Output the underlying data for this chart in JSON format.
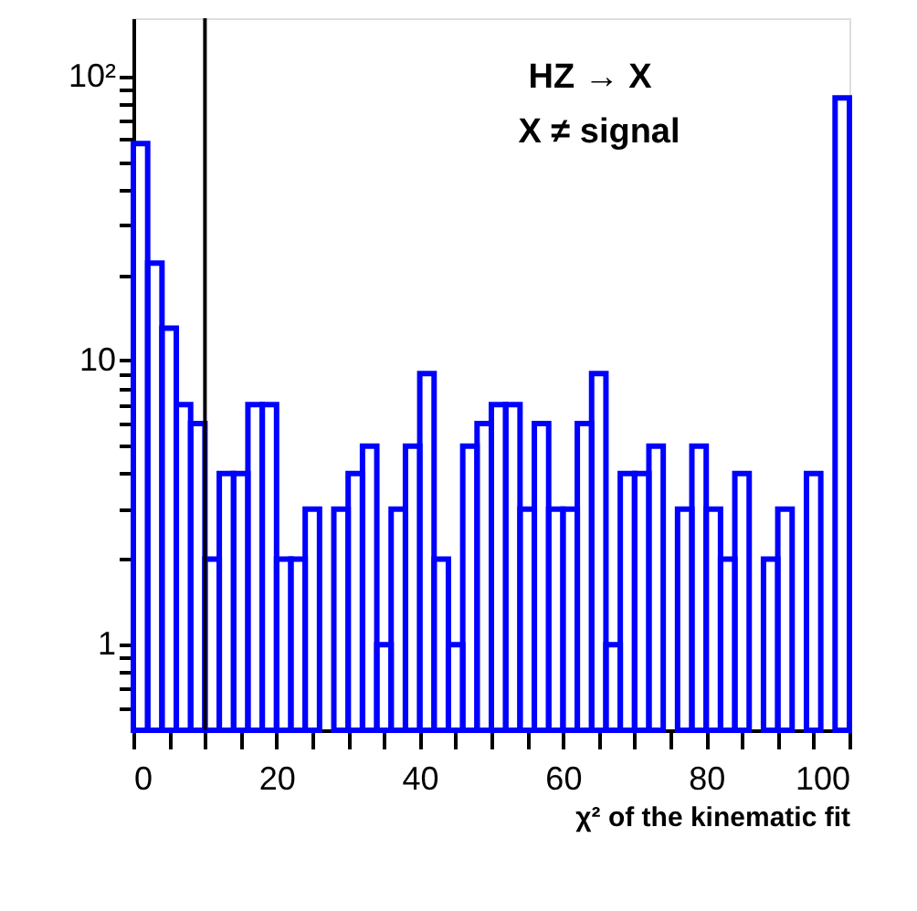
{
  "chart_data": {
    "type": "histogram",
    "xlabel": "χ² of the kinematic fit",
    "annotations": [
      "HZ → X",
      "X ≠ signal"
    ],
    "bins": [
      0,
      2,
      4,
      6,
      8,
      10,
      12,
      14,
      16,
      18,
      20,
      22,
      24,
      26,
      28,
      30,
      32,
      34,
      36,
      38,
      40,
      42,
      44,
      46,
      48,
      50,
      52,
      54,
      56,
      58,
      60,
      62,
      64,
      66,
      68,
      70,
      72,
      74,
      76,
      78,
      80,
      82,
      84,
      86,
      88,
      90,
      92,
      94,
      96,
      98,
      100
    ],
    "values": [
      58,
      22,
      13,
      7,
      6,
      2,
      4,
      4,
      7,
      7,
      2,
      2,
      3,
      null,
      3,
      4,
      5,
      1,
      3,
      5,
      9,
      2,
      1,
      5,
      6,
      7,
      7,
      3,
      6,
      3,
      3,
      6,
      9,
      1,
      4,
      4,
      5,
      null,
      3,
      5,
      3,
      2,
      4,
      null,
      2,
      3,
      null,
      4,
      null,
      84
    ],
    "color": "#0000ff",
    "xlim": [
      0,
      100
    ],
    "xticks": [
      0,
      {
        "value": 5,
        "label": null
      },
      {
        "value": 10,
        "label": null
      },
      {
        "value": 15,
        "label": null
      },
      20,
      {
        "value": 25,
        "label": null
      },
      {
        "value": 30,
        "label": null
      },
      {
        "value": 35,
        "label": null
      },
      40,
      {
        "value": 45,
        "label": null
      },
      {
        "value": 50,
        "label": null
      },
      {
        "value": 55,
        "label": null
      },
      60,
      {
        "value": 65,
        "label": null
      },
      {
        "value": 70,
        "label": null
      },
      {
        "value": 75,
        "label": null
      },
      80,
      {
        "value": 85,
        "label": null
      },
      {
        "value": 90,
        "label": null
      },
      {
        "value": 95,
        "label": null
      },
      100
    ],
    "ylim": [
      0.5,
      160
    ],
    "yticks": [
      {
        "value": 0.6,
        "label": null
      },
      {
        "value": 0.7,
        "label": null
      },
      {
        "value": 0.8,
        "label": null
      },
      {
        "value": 0.9,
        "label": null
      },
      1,
      {
        "value": 2,
        "label": null
      },
      {
        "value": 3,
        "label": null
      },
      {
        "value": 4,
        "label": null
      },
      {
        "value": 5,
        "label": null
      },
      {
        "value": 6,
        "label": null
      },
      {
        "value": 7,
        "label": null
      },
      {
        "value": 8,
        "label": null
      },
      {
        "value": 9,
        "label": null
      },
      10,
      {
        "value": 20,
        "label": null
      },
      {
        "value": 30,
        "label": null
      },
      {
        "value": 40,
        "label": null
      },
      {
        "value": 50,
        "label": null
      },
      {
        "value": 60,
        "label": null
      },
      {
        "value": 70,
        "label": null
      },
      {
        "value": 80,
        "label": null
      },
      {
        "value": 90,
        "label": null
      },
      {
        "value": 100,
        "label": "10²"
      }
    ],
    "log": "y",
    "grid": false,
    "ref_lines": [
      {
        "axis": "x",
        "value": 10,
        "color": "#000000"
      }
    ]
  }
}
